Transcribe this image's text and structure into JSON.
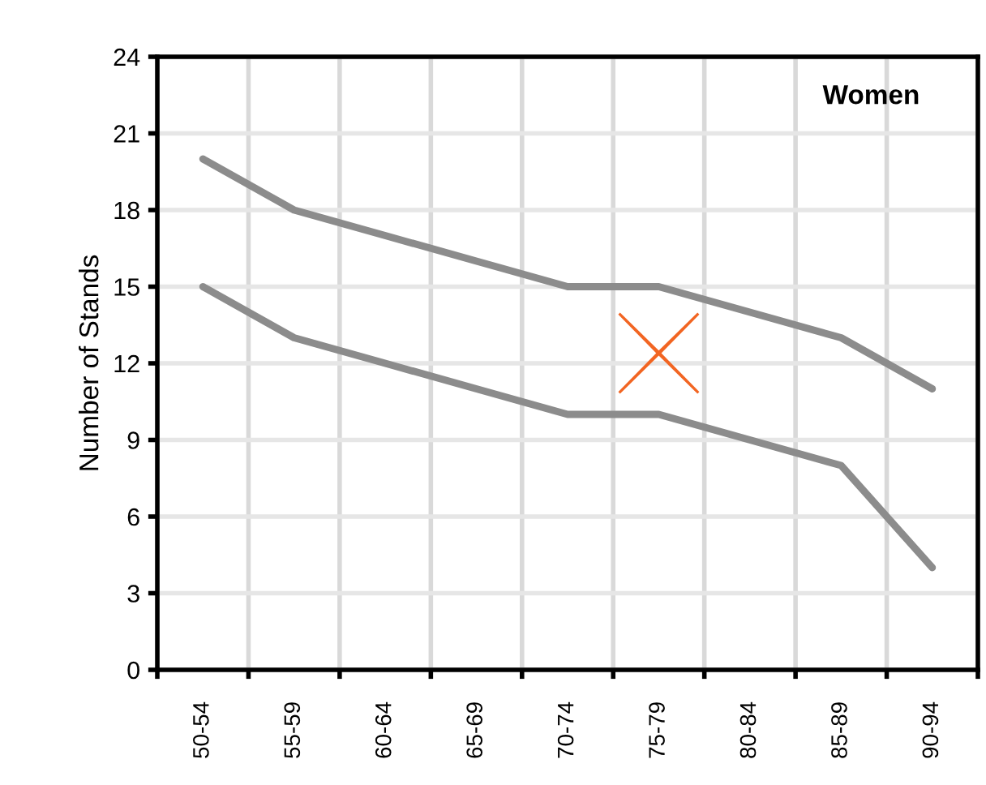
{
  "chart_data": {
    "type": "line",
    "title": "Women",
    "ylabel": "Number of Stands",
    "categories": [
      "50-54",
      "55-59",
      "60-64",
      "65-69",
      "70-74",
      "75-79",
      "80-84",
      "85-89",
      "90-94"
    ],
    "series": [
      {
        "color": "#8c8c8c",
        "values": [
          20,
          18,
          17,
          16,
          15,
          15,
          14,
          13,
          11
        ]
      },
      {
        "color": "#8c8c8c",
        "values": [
          15,
          13,
          12,
          11,
          10,
          10,
          9,
          8,
          4
        ]
      },
      {
        "type": "scatter",
        "color": "#f26522",
        "marker": "cross",
        "x": [
          "75-79"
        ],
        "values": [
          12.4
        ]
      }
    ],
    "ylim": [
      0,
      24
    ],
    "yticks": [
      0,
      3,
      6,
      9,
      12,
      15,
      18,
      21,
      24
    ],
    "grid": true,
    "marker": "none",
    "line_style": "solid"
  }
}
